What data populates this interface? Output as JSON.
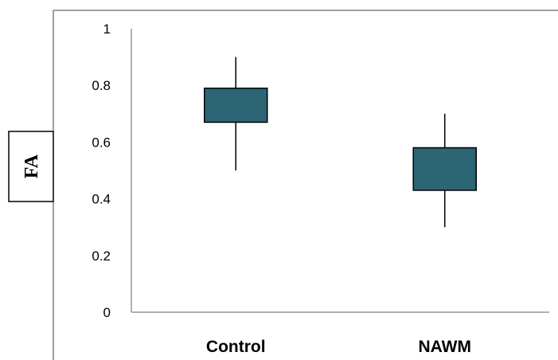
{
  "chart_data": {
    "type": "box",
    "ylabel": "FA",
    "ylim": [
      0,
      1
    ],
    "yticks": [
      {
        "value": 0,
        "label": "0"
      },
      {
        "value": 0.2,
        "label": "0.2"
      },
      {
        "value": 0.4,
        "label": "0.4"
      },
      {
        "value": 0.6,
        "label": "0.6"
      },
      {
        "value": 0.8,
        "label": "0.8"
      },
      {
        "value": 1,
        "label": "1"
      }
    ],
    "categories": [
      "Control",
      "NAWM"
    ],
    "boxes": [
      {
        "category": "Control",
        "min": 0.5,
        "q1": 0.67,
        "q3": 0.79,
        "max": 0.9
      },
      {
        "category": "NAWM",
        "min": 0.3,
        "q1": 0.43,
        "q3": 0.58,
        "max": 0.7
      }
    ],
    "colors": {
      "box_fill": "#2C6574",
      "box_edge": "#000000",
      "axis": "#000000",
      "frame": "#808080"
    }
  }
}
